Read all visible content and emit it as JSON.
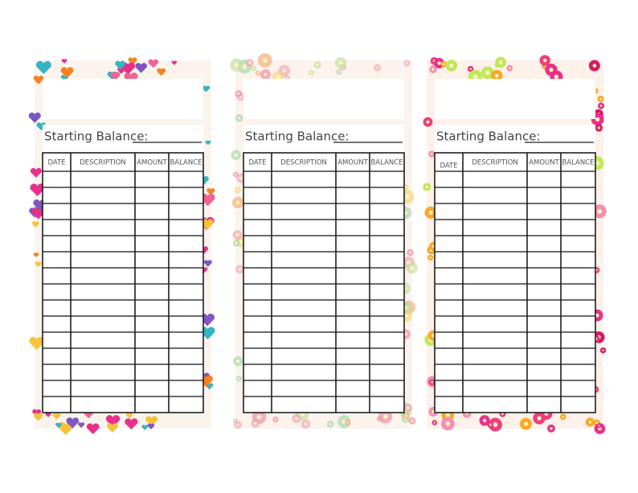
{
  "cards": [
    {
      "starting_balance_label": "Starting Balance:",
      "columns": [
        "DATE",
        "DESCRIPTION",
        "AMOUNT",
        "BALANCE"
      ]
    },
    {
      "starting_balance_label": "Starting Balance:",
      "columns": [
        "DATE",
        "DESCRIPTION",
        "AMOUNT",
        "BALANCE"
      ]
    },
    {
      "starting_balance_label": "Starting Balance:",
      "columns": [
        "DATE",
        "DESCRIPTION",
        "AMOUNT",
        "BALANCE"
      ]
    }
  ]
}
